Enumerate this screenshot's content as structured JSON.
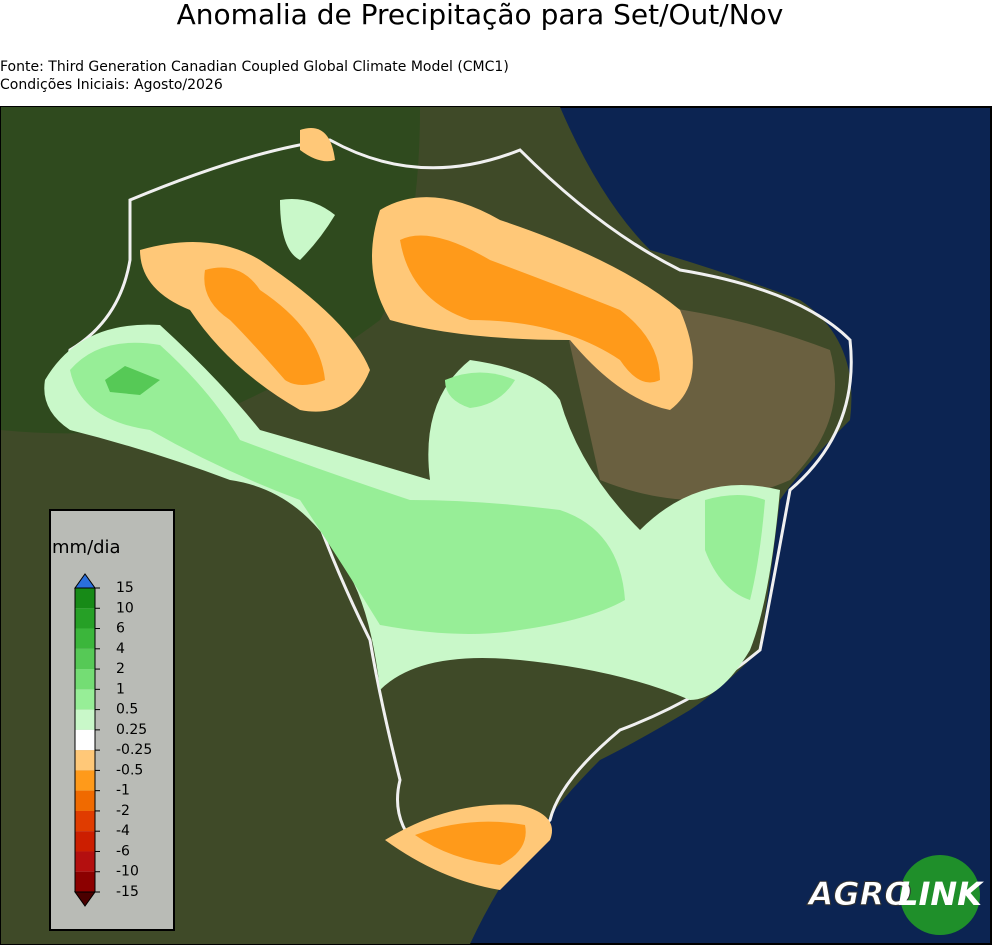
{
  "header": {
    "title": "Anomalia de Precipitação para Set/Out/Nov",
    "source": "Fonte: Third Generation Canadian Coupled Global Climate Model (CMC1)",
    "initial_conditions": "Condições Iniciais: Agosto/2026"
  },
  "legend": {
    "unit": "mm/dia",
    "ticks": [
      "15",
      "10",
      "6",
      "4",
      "2",
      "1",
      "0.5",
      "0.25",
      "-0.25",
      "-0.5",
      "-1",
      "-2",
      "-4",
      "-6",
      "-10",
      "-15"
    ],
    "colors": [
      "#178a17",
      "#26a026",
      "#3bb63b",
      "#56c956",
      "#74dd74",
      "#97ee97",
      "#c9f8c9",
      "#ffffff",
      "#ffc878",
      "#ff9a1a",
      "#f06a00",
      "#e03c00",
      "#cc1e00",
      "#b40f0f",
      "#8c0000"
    ],
    "extend_top_color": "#2a6fdc",
    "extend_bottom_color": "#4a0000"
  },
  "logo": {
    "left": "AGRO",
    "right": "LINK"
  }
}
